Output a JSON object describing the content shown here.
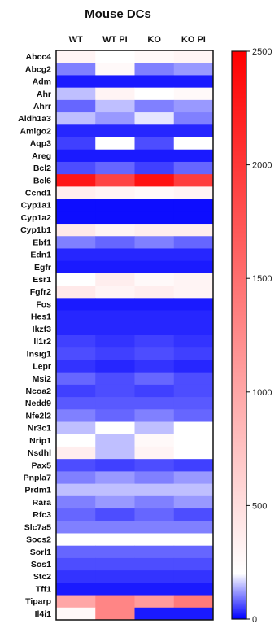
{
  "chart_data": {
    "type": "heatmap",
    "title": "Mouse DCs",
    "columns": [
      "WT",
      "WT PI",
      "KO",
      "KO PI"
    ],
    "rows": [
      "Abcc4",
      "Abcg2",
      "Adm",
      "Ahr",
      "Ahrr",
      "Aldh1a3",
      "Amigo2",
      "Aqp3",
      "Areg",
      "Bcl2",
      "Bcl6",
      "Ccnd1",
      "Cyp1a1",
      "Cyp1a2",
      "Cyp1b1",
      "Ebf1",
      "Edn1",
      "Egfr",
      "Esr1",
      "Fgfr2",
      "Fos",
      "Hes1",
      "Ikzf3",
      "Il1r2",
      "Insig1",
      "Lepr",
      "Msi2",
      "Ncoa2",
      "Nedd9",
      "Nfe2l2",
      "Nr3c1",
      "Nrip1",
      "Nsdhl",
      "Pax5",
      "Pnpla7",
      "Prdm1",
      "Rara",
      "Rfc3",
      "Slc7a5",
      "Socs2",
      "Sorl1",
      "Sos1",
      "Stc2",
      "Tff1",
      "Tiparp",
      "Il4i1"
    ],
    "values": [
      [
        300,
        200,
        250,
        300
      ],
      [
        100,
        250,
        100,
        120
      ],
      [
        20,
        20,
        20,
        20
      ],
      [
        150,
        300,
        200,
        250
      ],
      [
        80,
        150,
        100,
        120
      ],
      [
        150,
        120,
        180,
        100
      ],
      [
        30,
        30,
        30,
        30
      ],
      [
        50,
        200,
        60,
        200
      ],
      [
        20,
        20,
        20,
        20
      ],
      [
        60,
        80,
        50,
        80
      ],
      [
        2300,
        1900,
        2350,
        1950
      ],
      [
        350,
        300,
        250,
        300
      ],
      [
        10,
        10,
        10,
        10
      ],
      [
        10,
        10,
        10,
        10
      ],
      [
        400,
        300,
        350,
        350
      ],
      [
        100,
        80,
        100,
        80
      ],
      [
        30,
        30,
        30,
        30
      ],
      [
        20,
        20,
        20,
        20
      ],
      [
        200,
        350,
        250,
        300
      ],
      [
        400,
        300,
        350,
        300
      ],
      [
        20,
        20,
        20,
        20
      ],
      [
        30,
        30,
        30,
        30
      ],
      [
        30,
        30,
        30,
        30
      ],
      [
        50,
        40,
        50,
        40
      ],
      [
        60,
        50,
        60,
        50
      ],
      [
        40,
        30,
        40,
        30
      ],
      [
        80,
        60,
        80,
        60
      ],
      [
        50,
        60,
        50,
        60
      ],
      [
        70,
        70,
        70,
        70
      ],
      [
        100,
        80,
        100,
        80
      ],
      [
        150,
        200,
        150,
        200
      ],
      [
        200,
        150,
        250,
        200
      ],
      [
        350,
        150,
        300,
        200
      ],
      [
        60,
        50,
        60,
        50
      ],
      [
        100,
        120,
        100,
        120
      ],
      [
        150,
        150,
        150,
        150
      ],
      [
        100,
        120,
        100,
        120
      ],
      [
        80,
        60,
        80,
        60
      ],
      [
        100,
        100,
        100,
        100
      ],
      [
        200,
        200,
        200,
        200
      ],
      [
        80,
        80,
        80,
        80
      ],
      [
        60,
        60,
        60,
        60
      ],
      [
        40,
        40,
        40,
        40
      ],
      [
        20,
        20,
        20,
        20
      ],
      [
        1000,
        1300,
        1100,
        1400
      ],
      [
        250,
        1300,
        20,
        20
      ]
    ],
    "colorbar": {
      "min": 0,
      "max": 2500,
      "ticks": [
        0,
        500,
        1000,
        1500,
        2000,
        2500
      ],
      "colors": {
        "low": "#0000ff",
        "mid": "#ffffff",
        "high": "#ff0000"
      },
      "mid_value": 200
    }
  }
}
